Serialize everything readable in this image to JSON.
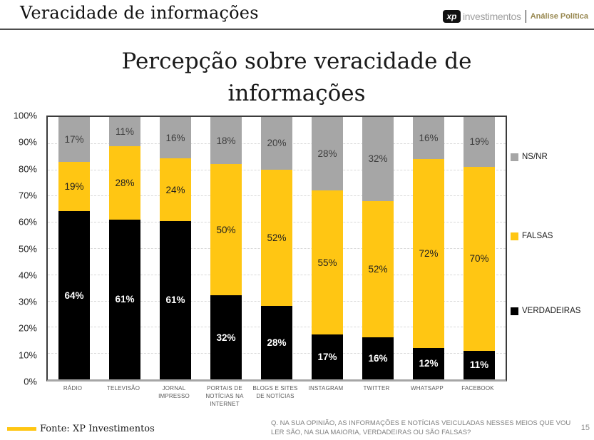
{
  "header": {
    "title": "Veracidade de informações",
    "logo": {
      "xp": "xp",
      "investimentos": "investimentos",
      "division": "Análise Política"
    }
  },
  "chart_data": {
    "type": "bar",
    "stacked": true,
    "title": "Percepção sobre veracidade de informações",
    "categories": [
      "RÁDIO",
      "TELEVISÃO",
      "JORNAL IMPRESSO",
      "PORTAIS DE NOTÍCIAS NA INTERNET",
      "BLOGS E SITES DE NOTÍCIAS",
      "INSTAGRAM",
      "TWITTER",
      "WHATSAPP",
      "FACEBOOK"
    ],
    "series": [
      {
        "name": "VERDADEIRAS",
        "color": "#000000",
        "values": [
          64,
          61,
          61,
          32,
          28,
          17,
          16,
          12,
          11
        ]
      },
      {
        "name": "FALSAS",
        "color": "#FFC613",
        "values": [
          19,
          28,
          24,
          50,
          52,
          55,
          52,
          72,
          70
        ]
      },
      {
        "name": "NS/NR",
        "color": "#A6A6A6",
        "values": [
          17,
          11,
          16,
          18,
          20,
          28,
          32,
          16,
          19
        ]
      }
    ],
    "y_ticks": [
      "100%",
      "90%",
      "80%",
      "70%",
      "60%",
      "50%",
      "40%",
      "30%",
      "20%",
      "10%",
      "0%"
    ],
    "ylim": [
      0,
      100
    ],
    "grid": "dashed-horizontal",
    "legend_position": "right"
  },
  "footer": {
    "source": "Fonte: XP Investimentos",
    "question": "Q. NA SUA OPINIÃO, AS INFORMAÇÕES E NOTÍCIAS VEICULADAS NESSES MEIOS QUE VOU LER SÃO, NA SUA MAIORIA, VERDADEIRAS OU SÃO FALSAS?",
    "page_number": "15"
  }
}
